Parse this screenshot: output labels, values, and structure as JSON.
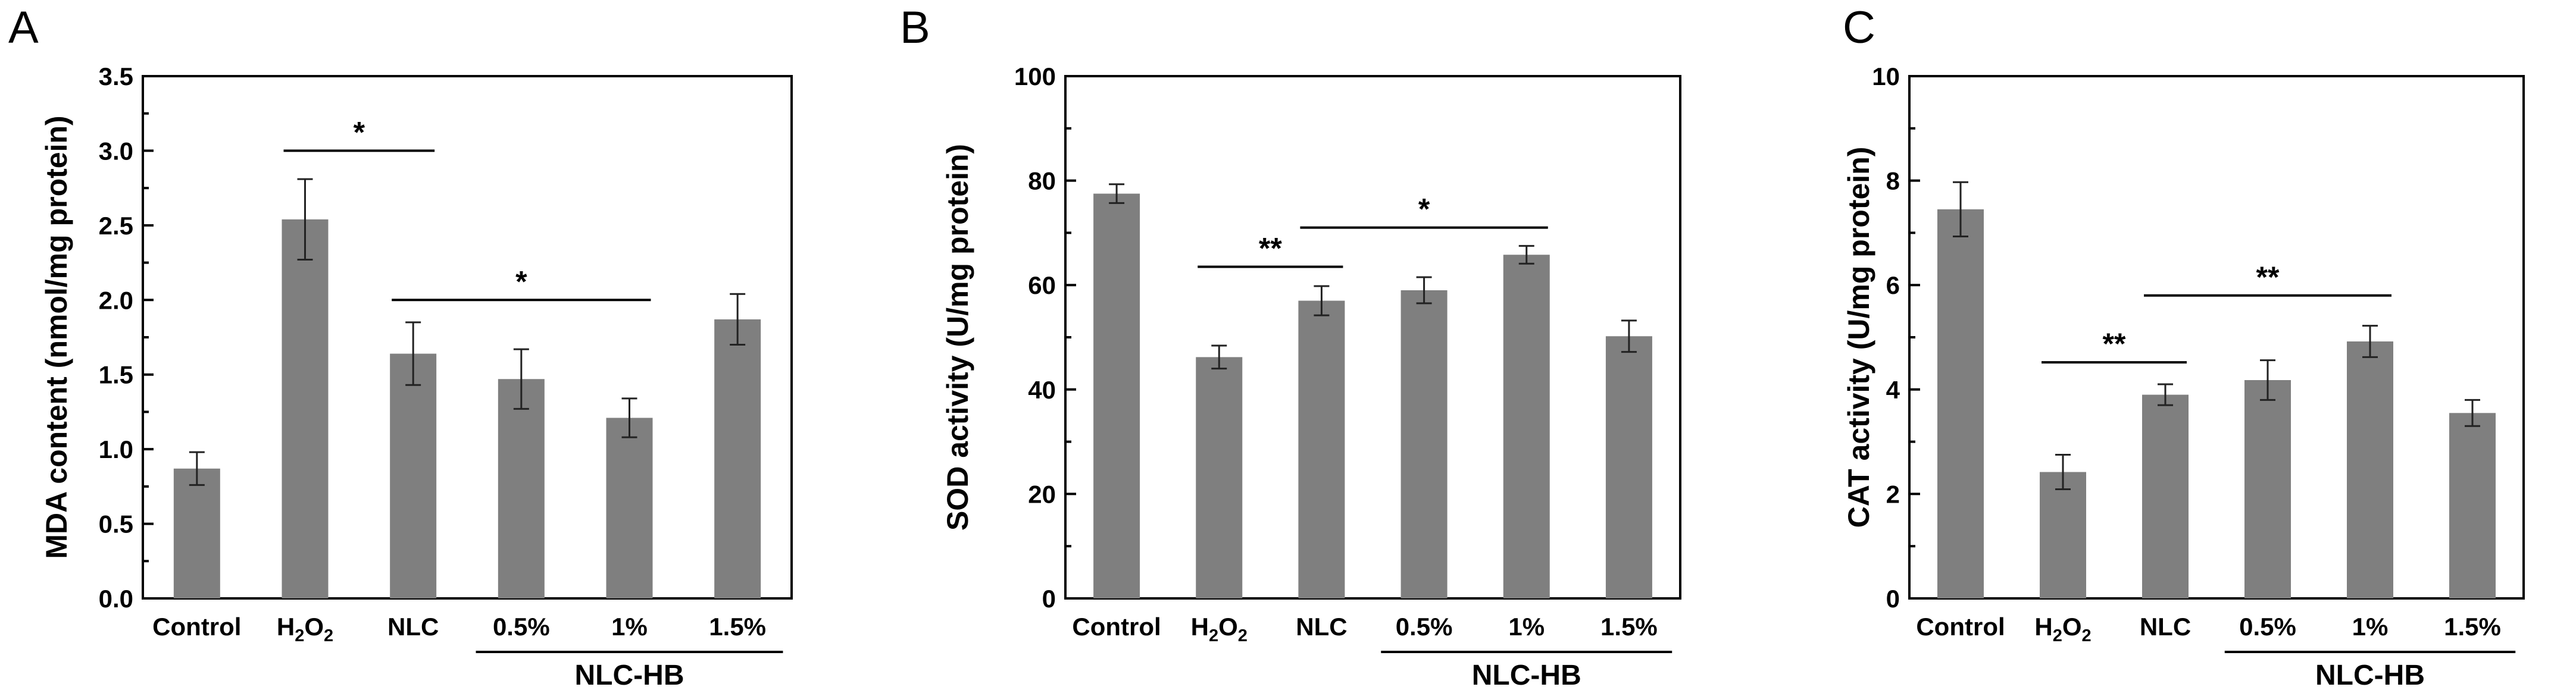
{
  "chart_data": [
    {
      "type": "bar",
      "panel": "A",
      "categories": [
        "Control",
        "H2O2",
        "NLC",
        "0.5%",
        "1%",
        "1.5%"
      ],
      "values": [
        0.87,
        2.54,
        1.64,
        1.47,
        1.21,
        1.87
      ],
      "errors": [
        0.11,
        0.27,
        0.21,
        0.2,
        0.13,
        0.17
      ],
      "ylabel": "MDA content (nmol/mg protein)",
      "ylim": [
        0,
        3.5
      ],
      "yticks": [
        0.0,
        0.5,
        1.0,
        1.5,
        2.0,
        2.5,
        3.0,
        3.5
      ],
      "ytick_labels": [
        "0.0",
        "0.5",
        "1.0",
        "1.5",
        "2.0",
        "2.5",
        "3.0",
        "3.5"
      ],
      "group_label": "NLC-HB",
      "group_from": 3,
      "group_to": 5,
      "bar_color": "#7f7f7f",
      "significance": [
        {
          "from": 1,
          "to": 2,
          "y": 3.0,
          "label": "*"
        },
        {
          "from": 2,
          "to": 4,
          "y": 2.0,
          "label": "*"
        }
      ]
    },
    {
      "type": "bar",
      "panel": "B",
      "categories": [
        "Control",
        "H2O2",
        "NLC",
        "0.5%",
        "1%",
        "1.5%"
      ],
      "values": [
        77.5,
        46.2,
        57.0,
        59.0,
        65.8,
        50.2
      ],
      "errors": [
        1.8,
        2.2,
        2.8,
        2.5,
        1.7,
        3.0
      ],
      "ylabel": "SOD activity (U/mg protein)",
      "ylim": [
        0,
        100
      ],
      "yticks": [
        0,
        20,
        40,
        60,
        80,
        100
      ],
      "ytick_labels": [
        "0",
        "20",
        "40",
        "60",
        "80",
        "100"
      ],
      "group_label": "NLC-HB",
      "group_from": 3,
      "group_to": 5,
      "bar_color": "#7f7f7f",
      "significance": [
        {
          "from": 1,
          "to": 2,
          "y": 63.5,
          "label": "**"
        },
        {
          "from": 2,
          "to": 4,
          "y": 71.0,
          "label": "*"
        }
      ]
    },
    {
      "type": "bar",
      "panel": "C",
      "categories": [
        "Control",
        "H2O2",
        "NLC",
        "0.5%",
        "1%",
        "1.5%"
      ],
      "values": [
        7.45,
        2.42,
        3.9,
        4.18,
        4.92,
        3.55
      ],
      "errors": [
        0.52,
        0.33,
        0.2,
        0.38,
        0.3,
        0.25
      ],
      "ylabel": "CAT activity (U/mg protein)",
      "ylim": [
        0,
        10
      ],
      "yticks": [
        0,
        2,
        4,
        6,
        8,
        10
      ],
      "ytick_labels": [
        "0",
        "2",
        "4",
        "6",
        "8",
        "10"
      ],
      "group_label": "NLC-HB",
      "group_from": 3,
      "group_to": 5,
      "bar_color": "#7f7f7f",
      "significance": [
        {
          "from": 1,
          "to": 2,
          "y": 4.52,
          "label": "**"
        },
        {
          "from": 2,
          "to": 4,
          "y": 5.8,
          "label": "**"
        }
      ]
    }
  ]
}
